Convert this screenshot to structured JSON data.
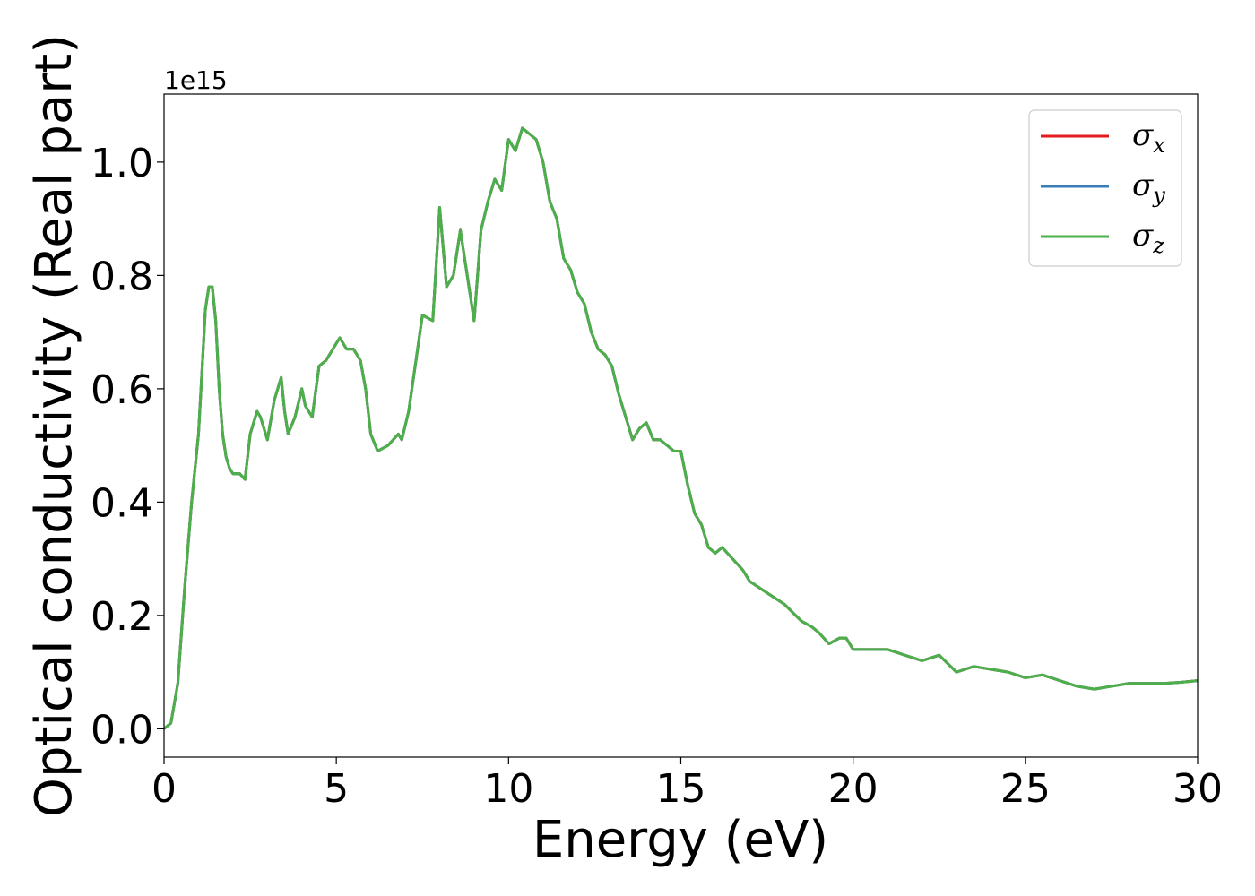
{
  "chart_data": {
    "type": "line",
    "xlabel": "Energy (eV)",
    "ylabel": "Optical conductivity (Real part)",
    "y_offset_label": "1e15",
    "xlim": [
      0,
      30
    ],
    "ylim": [
      -0.05,
      1.12
    ],
    "x_ticks": [
      0,
      5,
      10,
      15,
      20,
      25,
      30
    ],
    "x_tick_labels": [
      "0",
      "5",
      "10",
      "15",
      "20",
      "25",
      "30"
    ],
    "y_ticks": [
      0.0,
      0.2,
      0.4,
      0.6,
      0.8,
      1.0
    ],
    "y_tick_labels": [
      "0.0",
      "0.2",
      "0.4",
      "0.6",
      "0.8",
      "1.0"
    ],
    "grid": false,
    "legend_position": "top-right",
    "series": [
      {
        "name": "σ",
        "subscript": "x",
        "color": "#e41a1c"
      },
      {
        "name": "σ",
        "subscript": "y",
        "color": "#377eb8"
      },
      {
        "name": "σ",
        "subscript": "z",
        "color": "#4daf4a"
      }
    ],
    "x": [
      0,
      0.2,
      0.4,
      0.6,
      0.8,
      1.0,
      1.2,
      1.3,
      1.4,
      1.5,
      1.6,
      1.7,
      1.8,
      1.9,
      2.0,
      2.2,
      2.35,
      2.5,
      2.7,
      2.8,
      3.0,
      3.2,
      3.4,
      3.5,
      3.6,
      3.8,
      4.0,
      4.1,
      4.3,
      4.5,
      4.7,
      4.9,
      5.1,
      5.2,
      5.3,
      5.5,
      5.7,
      5.85,
      6.0,
      6.2,
      6.5,
      6.8,
      6.9,
      7.1,
      7.5,
      7.8,
      8.0,
      8.2,
      8.4,
      8.6,
      8.8,
      9.0,
      9.2,
      9.4,
      9.6,
      9.8,
      10.0,
      10.2,
      10.4,
      10.6,
      10.8,
      11.0,
      11.2,
      11.4,
      11.6,
      11.8,
      12.0,
      12.2,
      12.4,
      12.6,
      12.8,
      13.0,
      13.2,
      13.4,
      13.6,
      13.8,
      14.0,
      14.2,
      14.4,
      14.6,
      14.8,
      15.0,
      15.2,
      15.4,
      15.6,
      15.8,
      16.0,
      16.2,
      16.5,
      16.8,
      17.0,
      17.5,
      18.0,
      18.5,
      18.8,
      19.0,
      19.3,
      19.6,
      19.8,
      20.0,
      20.5,
      21.0,
      21.5,
      22.0,
      22.5,
      23.0,
      23.5,
      24.0,
      24.5,
      25.0,
      25.5,
      26.0,
      26.5,
      27.0,
      27.5,
      28.0,
      28.5,
      29.0,
      29.5,
      30.0
    ],
    "y": [
      0.0,
      0.01,
      0.08,
      0.25,
      0.4,
      0.52,
      0.74,
      0.78,
      0.78,
      0.72,
      0.6,
      0.52,
      0.48,
      0.46,
      0.45,
      0.45,
      0.44,
      0.52,
      0.56,
      0.55,
      0.51,
      0.58,
      0.62,
      0.56,
      0.52,
      0.55,
      0.6,
      0.57,
      0.55,
      0.64,
      0.65,
      0.67,
      0.69,
      0.68,
      0.67,
      0.67,
      0.65,
      0.6,
      0.52,
      0.49,
      0.5,
      0.52,
      0.51,
      0.56,
      0.73,
      0.72,
      0.92,
      0.78,
      0.8,
      0.88,
      0.8,
      0.72,
      0.88,
      0.93,
      0.97,
      0.95,
      1.04,
      1.02,
      1.06,
      1.05,
      1.04,
      1.0,
      0.93,
      0.9,
      0.83,
      0.81,
      0.77,
      0.75,
      0.7,
      0.67,
      0.66,
      0.64,
      0.59,
      0.55,
      0.51,
      0.53,
      0.54,
      0.51,
      0.51,
      0.5,
      0.49,
      0.49,
      0.43,
      0.38,
      0.36,
      0.32,
      0.31,
      0.32,
      0.3,
      0.28,
      0.26,
      0.24,
      0.22,
      0.19,
      0.18,
      0.17,
      0.15,
      0.16,
      0.16,
      0.14,
      0.14,
      0.14,
      0.13,
      0.12,
      0.13,
      0.1,
      0.11,
      0.105,
      0.1,
      0.09,
      0.095,
      0.085,
      0.075,
      0.07,
      0.075,
      0.08,
      0.08,
      0.08,
      0.082,
      0.085
    ]
  }
}
